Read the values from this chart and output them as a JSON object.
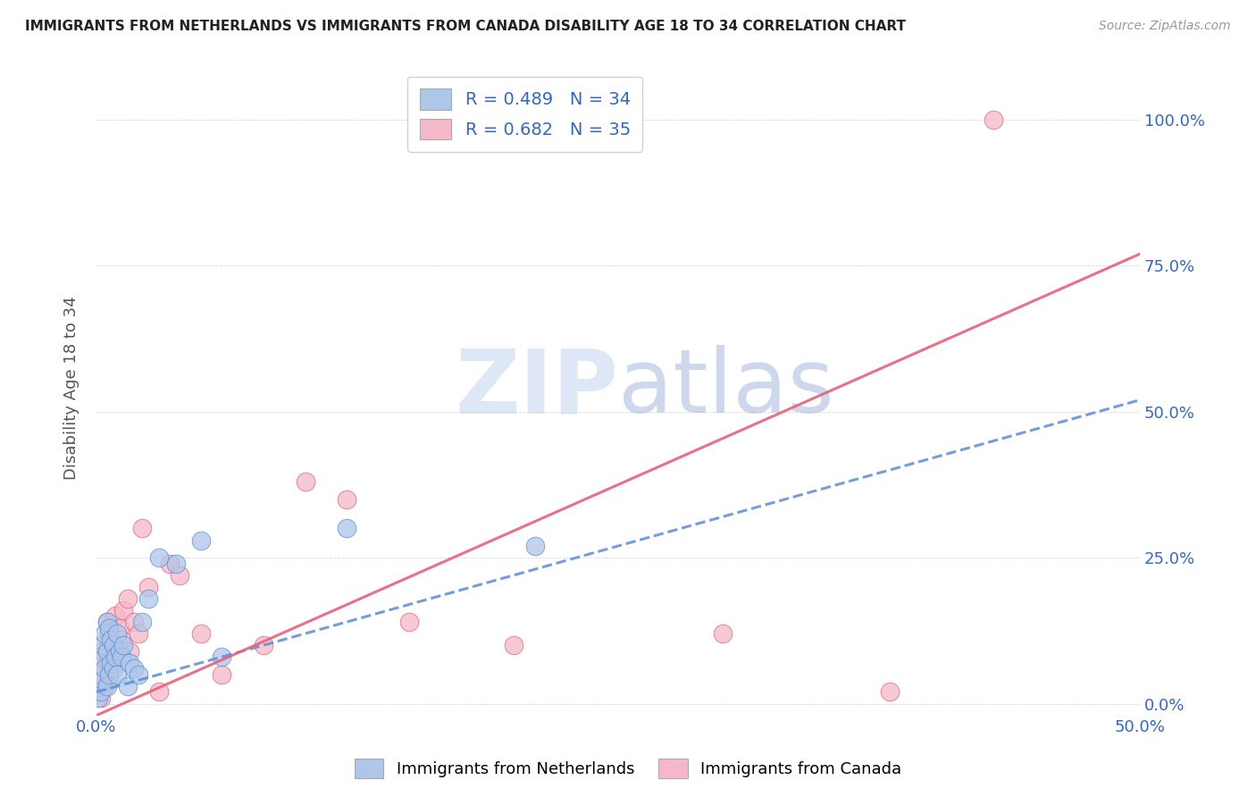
{
  "title": "IMMIGRANTS FROM NETHERLANDS VS IMMIGRANTS FROM CANADA DISABILITY AGE 18 TO 34 CORRELATION CHART",
  "source": "Source: ZipAtlas.com",
  "ylabel": "Disability Age 18 to 34",
  "xlim": [
    0.0,
    0.5
  ],
  "ylim": [
    -0.02,
    1.1
  ],
  "ytick_labels_right": [
    "0.0%",
    "25.0%",
    "50.0%",
    "75.0%",
    "100.0%"
  ],
  "ytick_positions_right": [
    0.0,
    0.25,
    0.5,
    0.75,
    1.0
  ],
  "legend_netherlands_R": "R = 0.489",
  "legend_netherlands_N": "N = 34",
  "legend_canada_R": "R = 0.682",
  "legend_canada_N": "N = 35",
  "netherlands_color": "#aec6e8",
  "canada_color": "#f5b8c8",
  "netherlands_line_color": "#5b8dd9",
  "canada_line_color": "#e8607a",
  "legend_text_color": "#3366cc",
  "watermark_zip": "ZIP",
  "watermark_atlas": "atlas",
  "background_color": "#ffffff",
  "grid_color": "#d0d0d0",
  "nl_x": [
    0.001,
    0.002,
    0.002,
    0.003,
    0.003,
    0.004,
    0.004,
    0.005,
    0.005,
    0.005,
    0.006,
    0.006,
    0.007,
    0.007,
    0.008,
    0.008,
    0.009,
    0.01,
    0.01,
    0.011,
    0.012,
    0.013,
    0.015,
    0.016,
    0.018,
    0.02,
    0.022,
    0.025,
    0.03,
    0.038,
    0.05,
    0.06,
    0.12,
    0.21
  ],
  "nl_y": [
    0.01,
    0.02,
    0.08,
    0.04,
    0.1,
    0.06,
    0.12,
    0.03,
    0.09,
    0.14,
    0.05,
    0.13,
    0.07,
    0.11,
    0.06,
    0.1,
    0.08,
    0.05,
    0.12,
    0.09,
    0.08,
    0.1,
    0.03,
    0.07,
    0.06,
    0.05,
    0.14,
    0.18,
    0.25,
    0.24,
    0.28,
    0.08,
    0.3,
    0.27
  ],
  "ca_x": [
    0.001,
    0.002,
    0.003,
    0.003,
    0.004,
    0.005,
    0.005,
    0.006,
    0.006,
    0.007,
    0.008,
    0.009,
    0.01,
    0.011,
    0.012,
    0.013,
    0.015,
    0.016,
    0.018,
    0.02,
    0.022,
    0.025,
    0.03,
    0.035,
    0.04,
    0.05,
    0.06,
    0.08,
    0.1,
    0.12,
    0.15,
    0.2,
    0.3,
    0.38,
    0.43
  ],
  "ca_y": [
    0.02,
    0.01,
    0.05,
    0.09,
    0.03,
    0.07,
    0.14,
    0.04,
    0.12,
    0.06,
    0.1,
    0.15,
    0.08,
    0.13,
    0.11,
    0.16,
    0.18,
    0.09,
    0.14,
    0.12,
    0.3,
    0.2,
    0.02,
    0.24,
    0.22,
    0.12,
    0.05,
    0.1,
    0.38,
    0.35,
    0.14,
    0.1,
    0.12,
    0.02,
    1.0
  ],
  "nl_line_x": [
    0.0,
    0.5
  ],
  "nl_line_y": [
    0.02,
    0.52
  ],
  "ca_line_x": [
    0.0,
    0.5
  ],
  "ca_line_y": [
    -0.02,
    0.77
  ]
}
